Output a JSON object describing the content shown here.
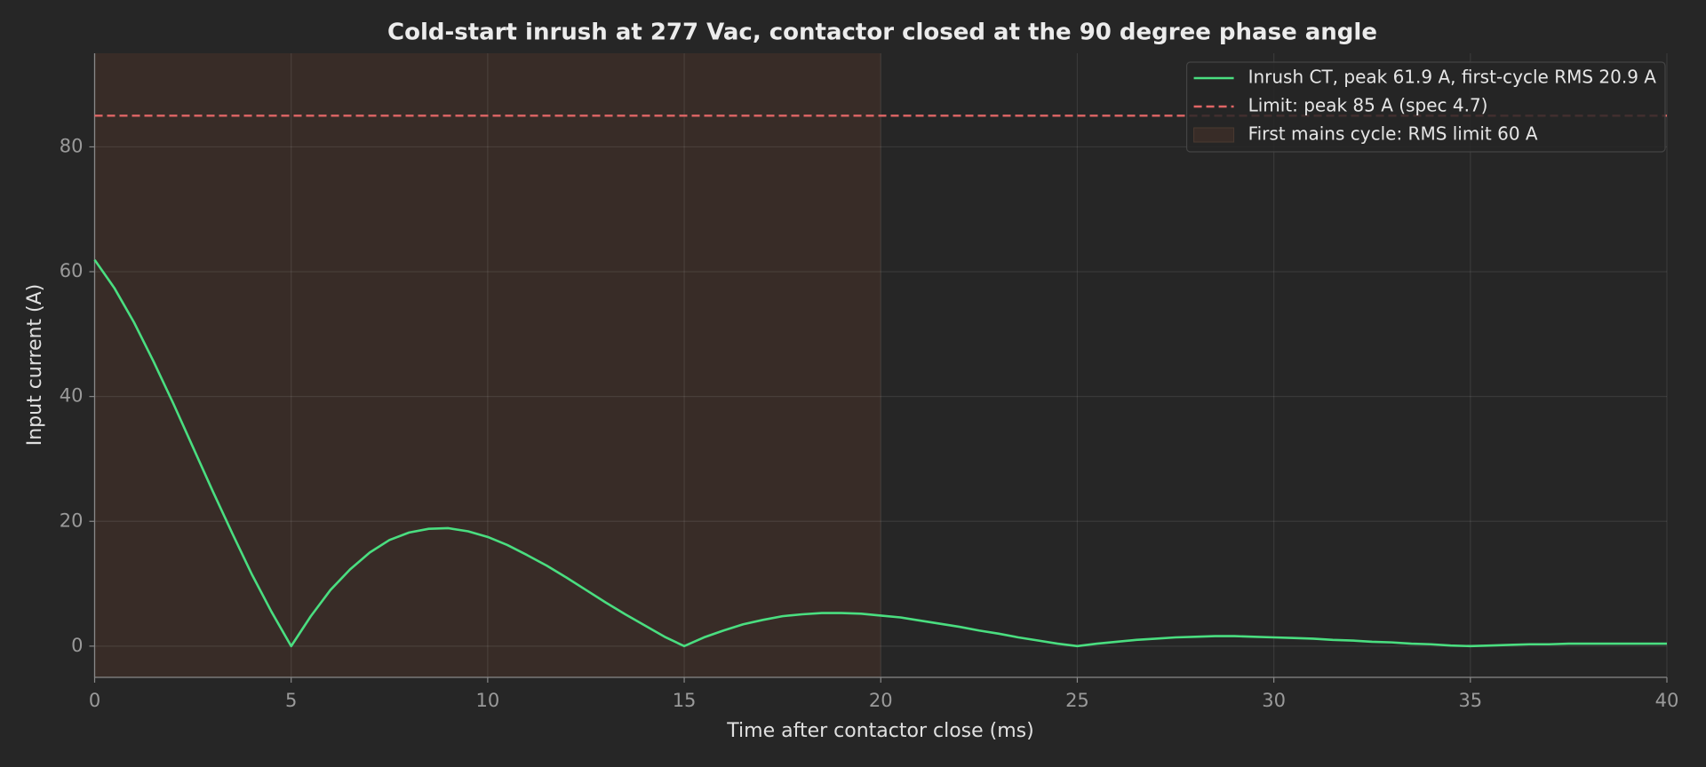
{
  "chart_data": {
    "type": "line",
    "title": "Cold-start inrush at 277 Vac, contactor closed at the 90 degree phase angle",
    "x_label": "Time after contactor close (ms)",
    "y_label": "Input current (A)",
    "x": [
      0,
      0.5,
      1,
      1.5,
      2,
      2.5,
      3,
      3.5,
      4,
      4.5,
      5,
      5.5,
      6,
      6.5,
      7,
      7.5,
      8,
      8.5,
      9,
      9.5,
      10,
      10.5,
      11,
      11.5,
      12,
      12.5,
      13,
      13.5,
      14,
      14.5,
      15,
      15.5,
      16,
      16.5,
      17,
      17.5,
      18,
      18.5,
      19,
      19.5,
      20,
      20.5,
      21,
      21.5,
      22,
      22.5,
      23,
      23.5,
      24,
      24.5,
      25,
      25.5,
      26,
      26.5,
      27,
      27.5,
      28,
      28.5,
      29,
      29.5,
      30,
      30.5,
      31,
      31.5,
      32,
      32.5,
      33,
      33.5,
      34,
      34.5,
      35,
      35.5,
      36,
      36.5,
      37,
      37.5,
      38,
      38.5,
      39,
      39.5,
      40
    ],
    "series": [
      {
        "name": "Inrush CT, peak 61.9 A, first-cycle RMS 20.9 A",
        "color": "#4ade80",
        "values": [
          61.9,
          57.4,
          51.9,
          45.6,
          38.9,
          31.9,
          24.9,
          18.1,
          11.5,
          5.5,
          0,
          4.8,
          9.0,
          12.3,
          15.0,
          17.0,
          18.2,
          18.8,
          18.9,
          18.4,
          17.5,
          16.2,
          14.6,
          12.9,
          11.0,
          9.0,
          7.0,
          5.1,
          3.3,
          1.5,
          0,
          1.4,
          2.5,
          3.5,
          4.2,
          4.8,
          5.1,
          5.3,
          5.3,
          5.2,
          4.9,
          4.6,
          4.1,
          3.6,
          3.1,
          2.5,
          2.0,
          1.4,
          0.9,
          0.4,
          0,
          0.4,
          0.7,
          1.0,
          1.2,
          1.4,
          1.5,
          1.6,
          1.6,
          1.5,
          1.4,
          1.3,
          1.2,
          1.0,
          0.9,
          0.7,
          0.6,
          0.4,
          0.3,
          0.1,
          0,
          0.1,
          0.2,
          0.3,
          0.3,
          0.4,
          0.4,
          0.4,
          0.4,
          0.4,
          0.4
        ]
      }
    ],
    "hlines": [
      {
        "name": "Limit: peak 85 A (spec 4.7)",
        "value": 85,
        "color": "#e06666"
      }
    ],
    "spans": [
      {
        "name": "First mains cycle: RMS limit 60 A",
        "x": [
          0,
          20
        ],
        "color": "#382c27"
      }
    ],
    "xlim": [
      0,
      40
    ],
    "xticks": [
      0,
      5,
      10,
      15,
      20,
      25,
      30,
      35,
      40
    ],
    "ylim": [
      -5,
      95
    ],
    "yticks": [
      0,
      20,
      40,
      60,
      80
    ],
    "grid": true,
    "legend": "upper right"
  }
}
